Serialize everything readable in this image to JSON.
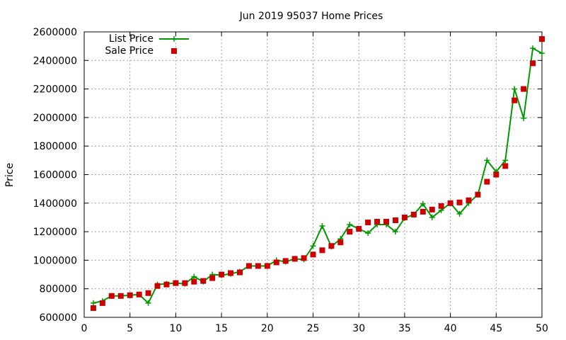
{
  "chart_data": {
    "type": "line",
    "title": "Jun 2019 95037 Home Prices",
    "xlabel": "",
    "ylabel": "Price",
    "xlim": [
      0,
      50
    ],
    "ylim": [
      600000,
      2600000
    ],
    "x_ticks": [
      "0",
      "5",
      "10",
      "15",
      "20",
      "25",
      "30",
      "35",
      "40",
      "45",
      "50"
    ],
    "y_ticks": [
      "600000",
      "800000",
      "1000000",
      "1200000",
      "1400000",
      "1600000",
      "1800000",
      "2000000",
      "2200000",
      "2400000",
      "2600000"
    ],
    "grid": true,
    "legend_position": "top-left",
    "x": [
      1,
      2,
      3,
      4,
      5,
      6,
      7,
      8,
      9,
      10,
      11,
      12,
      13,
      14,
      15,
      16,
      17,
      18,
      19,
      20,
      21,
      22,
      23,
      24,
      25,
      26,
      27,
      28,
      29,
      30,
      31,
      32,
      33,
      34,
      35,
      36,
      37,
      38,
      39,
      40,
      41,
      42,
      43,
      44,
      45,
      46,
      47,
      48,
      49,
      50
    ],
    "series": [
      {
        "name": "List Price",
        "style": "line-points",
        "color": "#009900",
        "values": [
          700000,
          715000,
          750000,
          750000,
          755000,
          760000,
          700000,
          830000,
          835000,
          840000,
          835000,
          885000,
          850000,
          900000,
          895000,
          905000,
          920000,
          960000,
          960000,
          960000,
          1000000,
          990000,
          1010000,
          1005000,
          1100000,
          1240000,
          1095000,
          1150000,
          1250000,
          1220000,
          1190000,
          1250000,
          1250000,
          1200000,
          1295000,
          1320000,
          1395000,
          1300000,
          1350000,
          1400000,
          1325000,
          1400000,
          1460000,
          1700000,
          1620000,
          1700000,
          2200000,
          1995000,
          2485000,
          2450000
        ]
      },
      {
        "name": "Sale Price",
        "style": "points",
        "color": "#cc0000",
        "values": [
          665000,
          700000,
          750000,
          750000,
          755000,
          760000,
          770000,
          820000,
          830000,
          840000,
          840000,
          850000,
          855000,
          875000,
          900000,
          910000,
          915000,
          960000,
          960000,
          960000,
          985000,
          995000,
          1010000,
          1015000,
          1040000,
          1070000,
          1100000,
          1125000,
          1200000,
          1220000,
          1265000,
          1270000,
          1270000,
          1280000,
          1300000,
          1320000,
          1340000,
          1355000,
          1380000,
          1400000,
          1405000,
          1420000,
          1460000,
          1550000,
          1600000,
          1660000,
          2120000,
          2200000,
          2380000,
          2550000
        ]
      }
    ]
  }
}
